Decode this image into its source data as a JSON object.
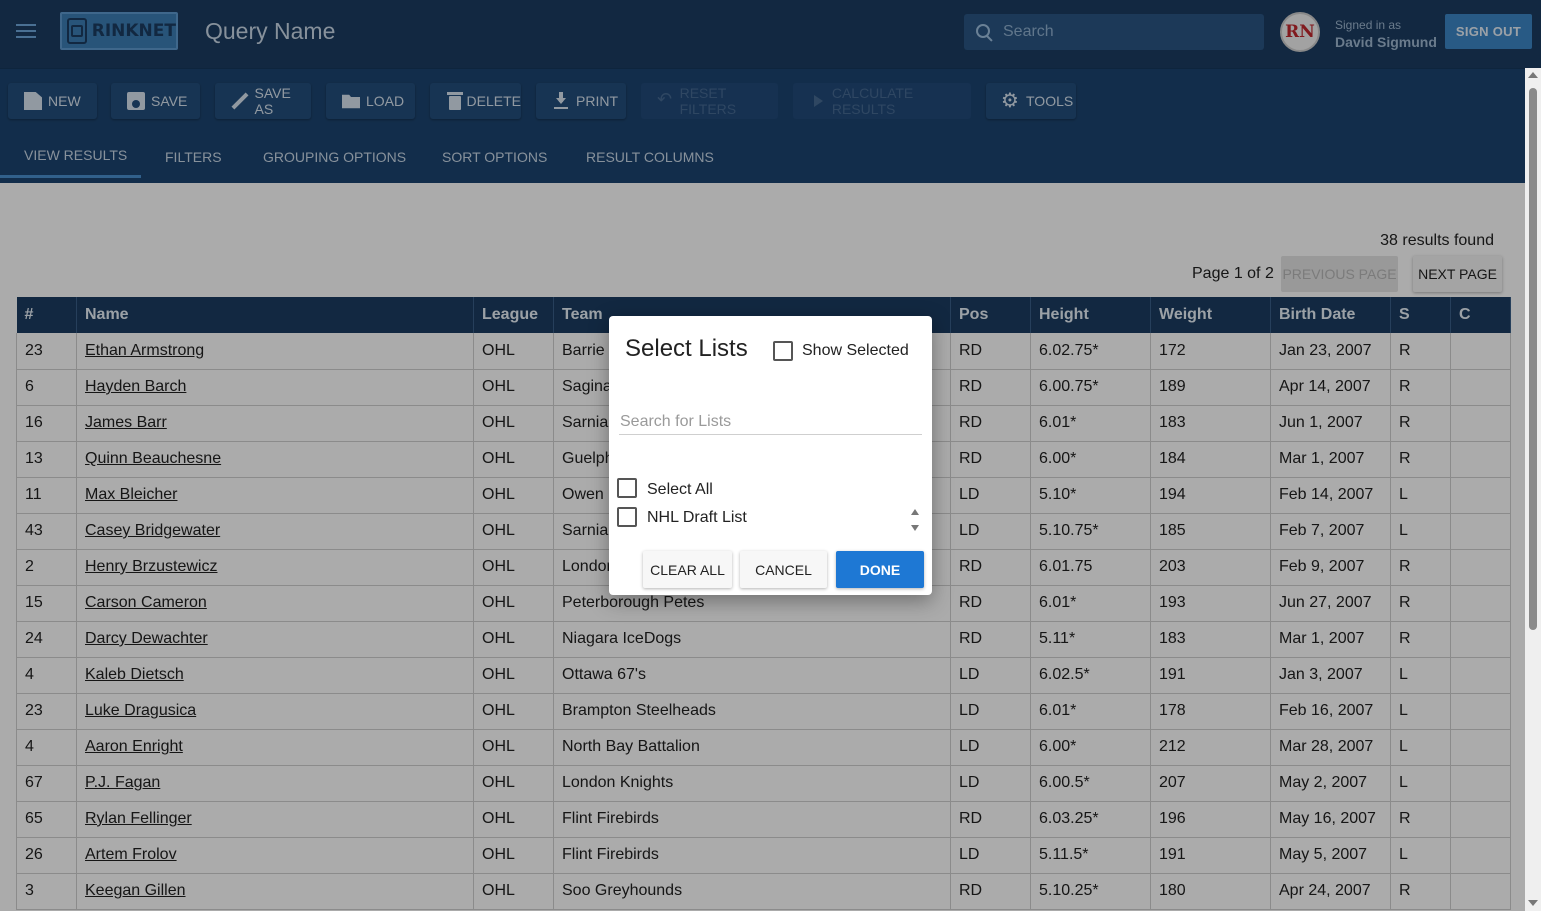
{
  "header": {
    "logo_text": "RINKNET",
    "query_title": "Query Name",
    "search_placeholder": "Search",
    "avatar_initials": "RN",
    "signed_in_label": "Signed in as",
    "user_name": "David Sigmund",
    "sign_out_label": "SIGN OUT"
  },
  "toolbar": {
    "new_label": "NEW",
    "save_label": "SAVE",
    "save_as_label": "SAVE AS",
    "load_label": "LOAD",
    "delete_label": "DELETE",
    "print_label": "PRINT",
    "reset_filters_label": "RESET FILTERS",
    "calculate_results_label": "CALCULATE RESULTS",
    "tools_label": "TOOLS"
  },
  "tabs": {
    "view_results": "VIEW RESULTS",
    "filters": "FILTERS",
    "grouping_options": "GROUPING OPTIONS",
    "sort_options": "SORT OPTIONS",
    "result_columns": "RESULT COLUMNS",
    "active": "VIEW RESULTS"
  },
  "results": {
    "count_text": "38 results found",
    "page_text": "Page 1 of 2",
    "previous_label": "PREVIOUS PAGE",
    "next_label": "NEXT PAGE"
  },
  "table": {
    "headers": {
      "num": "#",
      "name": "Name",
      "league": "League",
      "team": "Team",
      "pos": "Pos",
      "height": "Height",
      "weight": "Weight",
      "birth_date": "Birth Date",
      "s": "S",
      "c": "C"
    },
    "rows": [
      {
        "num": "23",
        "name": "Ethan Armstrong",
        "league": "OHL",
        "team": "Barrie Colts",
        "pos": "RD",
        "height": "6.02.75*",
        "weight": "172",
        "birth": "Jan 23, 2007",
        "s": "R"
      },
      {
        "num": "6",
        "name": "Hayden Barch",
        "league": "OHL",
        "team": "Saginaw Spirit",
        "pos": "RD",
        "height": "6.00.75*",
        "weight": "189",
        "birth": "Apr 14, 2007",
        "s": "R"
      },
      {
        "num": "16",
        "name": "James Barr",
        "league": "OHL",
        "team": "Sarnia Sting",
        "pos": "RD",
        "height": "6.01*",
        "weight": "183",
        "birth": "Jun 1, 2007",
        "s": "R"
      },
      {
        "num": "13",
        "name": "Quinn Beauchesne",
        "league": "OHL",
        "team": "Guelph Storm",
        "pos": "RD",
        "height": "6.00*",
        "weight": "184",
        "birth": "Mar 1, 2007",
        "s": "R"
      },
      {
        "num": "11",
        "name": "Max Bleicher",
        "league": "OHL",
        "team": "Owen Sound Attack",
        "pos": "LD",
        "height": "5.10*",
        "weight": "194",
        "birth": "Feb 14, 2007",
        "s": "L"
      },
      {
        "num": "43",
        "name": "Casey Bridgewater",
        "league": "OHL",
        "team": "Sarnia Sting",
        "pos": "LD",
        "height": "5.10.75*",
        "weight": "185",
        "birth": "Feb 7, 2007",
        "s": "L"
      },
      {
        "num": "2",
        "name": "Henry Brzustewicz",
        "league": "OHL",
        "team": "London Knights",
        "pos": "RD",
        "height": "6.01.75",
        "weight": "203",
        "birth": "Feb 9, 2007",
        "s": "R"
      },
      {
        "num": "15",
        "name": "Carson Cameron",
        "league": "OHL",
        "team": "Peterborough Petes",
        "pos": "RD",
        "height": "6.01*",
        "weight": "193",
        "birth": "Jun 27, 2007",
        "s": "R"
      },
      {
        "num": "24",
        "name": "Darcy Dewachter",
        "league": "OHL",
        "team": "Niagara IceDogs",
        "pos": "RD",
        "height": "5.11*",
        "weight": "183",
        "birth": "Mar 1, 2007",
        "s": "R"
      },
      {
        "num": "4",
        "name": "Kaleb Dietsch",
        "league": "OHL",
        "team": "Ottawa 67's",
        "pos": "LD",
        "height": "6.02.5*",
        "weight": "191",
        "birth": "Jan 3, 2007",
        "s": "L"
      },
      {
        "num": "23",
        "name": "Luke Dragusica",
        "league": "OHL",
        "team": "Brampton Steelheads",
        "pos": "LD",
        "height": "6.01*",
        "weight": "178",
        "birth": "Feb 16, 2007",
        "s": "L"
      },
      {
        "num": "4",
        "name": "Aaron Enright",
        "league": "OHL",
        "team": "North Bay Battalion",
        "pos": "LD",
        "height": "6.00*",
        "weight": "212",
        "birth": "Mar 28, 2007",
        "s": "L"
      },
      {
        "num": "67",
        "name": "P.J. Fagan",
        "league": "OHL",
        "team": "London Knights",
        "pos": "LD",
        "height": "6.00.5*",
        "weight": "207",
        "birth": "May 2, 2007",
        "s": "L"
      },
      {
        "num": "65",
        "name": "Rylan Fellinger",
        "league": "OHL",
        "team": "Flint Firebirds",
        "pos": "RD",
        "height": "6.03.25*",
        "weight": "196",
        "birth": "May 16, 2007",
        "s": "R"
      },
      {
        "num": "26",
        "name": "Artem Frolov",
        "league": "OHL",
        "team": "Flint Firebirds",
        "pos": "LD",
        "height": "5.11.5*",
        "weight": "191",
        "birth": "May 5, 2007",
        "s": "L"
      },
      {
        "num": "3",
        "name": "Keegan Gillen",
        "league": "OHL",
        "team": "Soo Greyhounds",
        "pos": "RD",
        "height": "5.10.25*",
        "weight": "180",
        "birth": "Apr 24, 2007",
        "s": "R"
      }
    ]
  },
  "dialog": {
    "title": "Select Lists",
    "show_selected_label": "Show Selected",
    "search_placeholder": "Search for Lists",
    "options": [
      "Select All",
      "NHL Draft List"
    ],
    "clear_all_label": "CLEAR ALL",
    "cancel_label": "CANCEL",
    "done_label": "DONE"
  },
  "colors": {
    "header_bg": "#1c3d61",
    "toolbar_bg": "#1c4470",
    "accent": "#1e78d4",
    "sign_out_bg": "#3d86c6"
  }
}
